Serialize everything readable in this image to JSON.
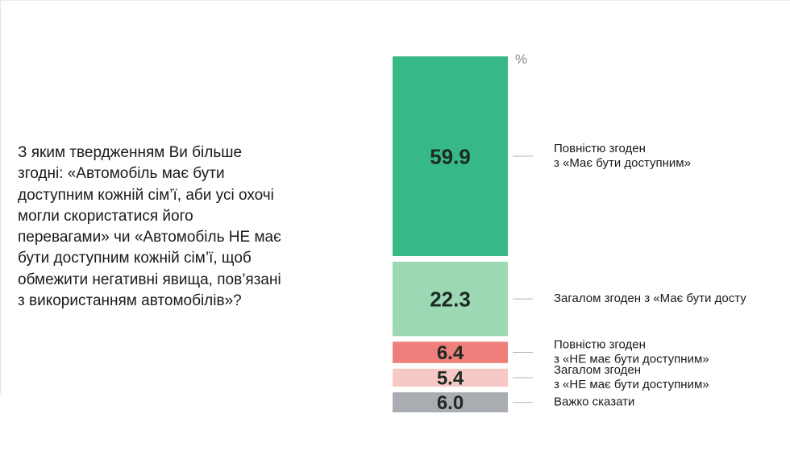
{
  "question": "З яким твердженням Ви більше\nзгодні: «Автомобіль має бути\nдоступним кожній сім’ї, аби усі охочі\nмогли скористатися його\nперевагами» чи «Автомобіль НЕ має\nбути доступним кожній сім’ї, щоб\nобмежити негативні явища, пов’язані\nз використанням автомобілів»?",
  "chart_data": {
    "type": "bar",
    "stacked": true,
    "unit_label": "%",
    "categories": [
      "Повністю згоден\nз «Має бути доступним»",
      "Загалом згоден з «Має бути досту",
      "Повністю згоден\nз «НЕ має бути доступним»",
      "Загалом згоден\nз «НЕ має бути доступним»",
      "Важко сказати"
    ],
    "values": [
      59.9,
      22.3,
      6.4,
      5.4,
      6.0
    ],
    "value_labels": [
      "59.9",
      "22.3",
      "6.4",
      "5.4",
      "6.0"
    ],
    "colors": [
      "#36b987",
      "#9dd8b5",
      "#ee7f7a",
      "#f7c9c6",
      "#a9acb0"
    ],
    "total": 100
  }
}
